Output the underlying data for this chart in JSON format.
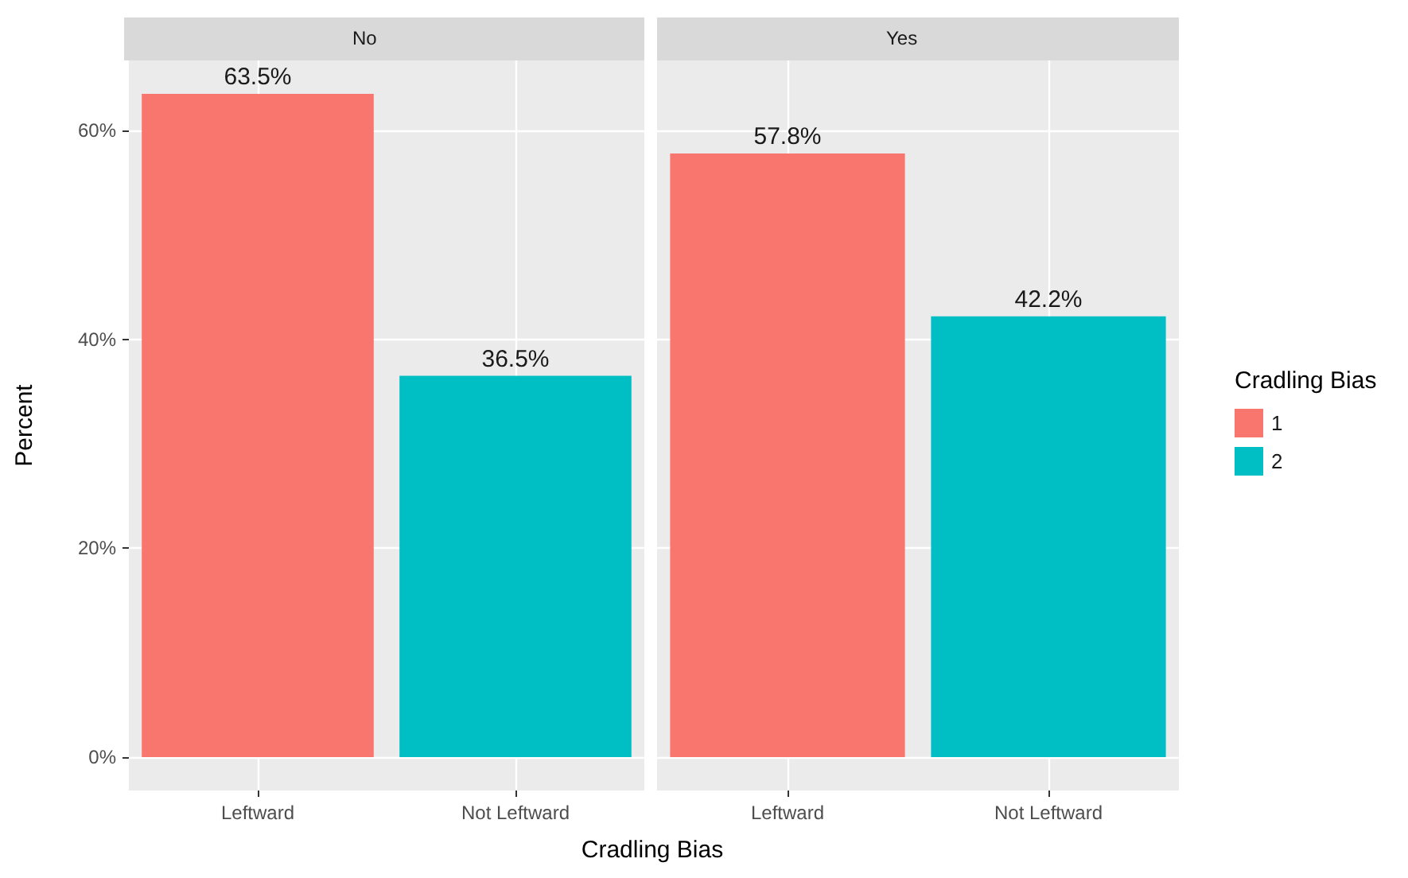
{
  "chart_data": [
    {
      "type": "bar",
      "title": "No",
      "xlabel": "Cradling Bias",
      "ylabel": "Percent",
      "categories": [
        "Leftward",
        "Not Leftward"
      ],
      "stacked": true,
      "series": [
        {
          "color": "#f8766d",
          "values": [
            63.5,
            null
          ],
          "value_labels": [
            "63.5%",
            null
          ]
        },
        {
          "color": "#00bfc4",
          "values": [
            null,
            36.5
          ],
          "value_labels": [
            null,
            "36.5%"
          ]
        }
      ],
      "ylim": [
        -3.2,
        66.7
      ],
      "yticks": [
        {
          "value": 0,
          "label": "0%"
        },
        {
          "value": 20,
          "label": "20%"
        },
        {
          "value": 40,
          "label": "40%"
        },
        {
          "value": 60,
          "label": "60%"
        }
      ],
      "grid": true
    },
    {
      "type": "bar",
      "title": "Yes",
      "categories": [
        "Leftward",
        "Not Leftward"
      ],
      "stacked": true,
      "legend_title": "Cradling Bias",
      "legend": "right",
      "tick_labels": "x",
      "series": [
        {
          "name": "1",
          "color": "#f8766d",
          "values": [
            57.8,
            null
          ],
          "value_labels": [
            "57.8%",
            null
          ]
        },
        {
          "name": "2",
          "color": "#00bfc4",
          "values": [
            null,
            42.2
          ],
          "value_labels": [
            null,
            "42.2%"
          ]
        }
      ],
      "ylim": [
        -3.2,
        66.7
      ],
      "yticks": [
        0,
        20,
        40,
        60
      ],
      "grid": true
    }
  ]
}
